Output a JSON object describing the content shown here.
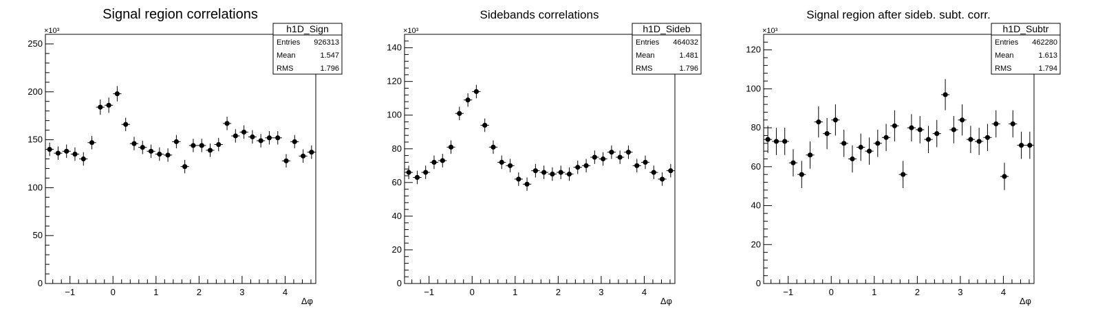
{
  "chart_data": [
    {
      "type": "scatter",
      "title": "Signal region correlations",
      "xlabel": "Δφ",
      "ylabel": "",
      "y_multiplier_label": "×10³",
      "xlim": [
        -1.5708,
        4.7124
      ],
      "ylim": [
        0,
        260
      ],
      "xticks": [
        -1,
        0,
        1,
        2,
        3,
        4
      ],
      "yticks": [
        0,
        50,
        100,
        150,
        200,
        250
      ],
      "grid": false,
      "legend": "stats box top-right",
      "stats": {
        "name": "h1D_Sign",
        "rows": [
          {
            "label": "Entries",
            "value": "926313"
          },
          {
            "label": "Mean",
            "value": "1.547"
          },
          {
            "label": "RMS",
            "value": "1.796"
          }
        ]
      },
      "x": [
        -1.473,
        -1.276,
        -1.08,
        -0.884,
        -0.687,
        -0.491,
        -0.295,
        -0.098,
        0.098,
        0.295,
        0.491,
        0.687,
        0.884,
        1.08,
        1.276,
        1.473,
        1.669,
        1.865,
        2.062,
        2.258,
        2.454,
        2.651,
        2.847,
        3.043,
        3.24,
        3.436,
        3.632,
        3.829,
        4.025,
        4.221,
        4.418,
        4.614
      ],
      "y": [
        140,
        136,
        138,
        135,
        130,
        147,
        184,
        186,
        198,
        166,
        146,
        142,
        138,
        135,
        134,
        148,
        122,
        144,
        144,
        139,
        145,
        167,
        154,
        158,
        153,
        149,
        152,
        152,
        128,
        148,
        133,
        137
      ],
      "yerr": [
        7,
        7,
        7,
        7,
        7,
        7,
        8,
        8,
        8,
        7,
        7,
        7,
        7,
        7,
        7,
        7,
        7,
        7,
        7,
        7,
        7,
        7,
        7,
        7,
        7,
        7,
        7,
        7,
        7,
        7,
        7,
        7
      ]
    },
    {
      "type": "scatter",
      "title": "Sidebands correlations",
      "xlabel": "Δφ",
      "ylabel": "",
      "y_multiplier_label": "×10³",
      "xlim": [
        -1.5708,
        4.7124
      ],
      "ylim": [
        0,
        148
      ],
      "xticks": [
        -1,
        0,
        1,
        2,
        3,
        4
      ],
      "yticks": [
        0,
        20,
        40,
        60,
        80,
        100,
        120,
        140
      ],
      "grid": false,
      "legend": "stats box top-right",
      "stats": {
        "name": "h1D_Sideb",
        "rows": [
          {
            "label": "Entries",
            "value": "464032"
          },
          {
            "label": "Mean",
            "value": "1.481"
          },
          {
            "label": "RMS",
            "value": "1.796"
          }
        ]
      },
      "x": [
        -1.473,
        -1.276,
        -1.08,
        -0.884,
        -0.687,
        -0.491,
        -0.295,
        -0.098,
        0.098,
        0.295,
        0.491,
        0.687,
        0.884,
        1.08,
        1.276,
        1.473,
        1.669,
        1.865,
        2.062,
        2.258,
        2.454,
        2.651,
        2.847,
        3.043,
        3.24,
        3.436,
        3.632,
        3.829,
        4.025,
        4.221,
        4.418,
        4.614
      ],
      "y": [
        66,
        63,
        66,
        72,
        73,
        81,
        101,
        109,
        114,
        94,
        81,
        72,
        70,
        62,
        59,
        67,
        66,
        65,
        66,
        65,
        69,
        70,
        75,
        74,
        78,
        75,
        78,
        70,
        72,
        66,
        62,
        67
      ],
      "yerr": [
        4,
        4,
        4,
        4,
        4,
        4,
        4,
        4,
        4,
        4,
        4,
        4,
        4,
        4,
        4,
        4,
        4,
        4,
        4,
        4,
        4,
        4,
        4,
        4,
        4,
        4,
        4,
        4,
        4,
        4,
        4,
        4
      ]
    },
    {
      "type": "scatter",
      "title": "Signal region after sideb. subt. corr.",
      "xlabel": "Δφ",
      "ylabel": "",
      "y_multiplier_label": "×10³",
      "xlim": [
        -1.5708,
        4.7124
      ],
      "ylim": [
        0,
        128
      ],
      "xticks": [
        -1,
        0,
        1,
        2,
        3,
        4
      ],
      "yticks": [
        0,
        20,
        40,
        60,
        80,
        100,
        120
      ],
      "grid": false,
      "legend": "stats box top-right",
      "stats": {
        "name": "h1D_Subtr",
        "rows": [
          {
            "label": "Entries",
            "value": "462280"
          },
          {
            "label": "Mean",
            "value": "1.613"
          },
          {
            "label": "RMS",
            "value": "1.794"
          }
        ]
      },
      "x": [
        -1.473,
        -1.276,
        -1.08,
        -0.884,
        -0.687,
        -0.491,
        -0.295,
        -0.098,
        0.098,
        0.295,
        0.491,
        0.687,
        0.884,
        1.08,
        1.276,
        1.473,
        1.669,
        1.865,
        2.062,
        2.258,
        2.454,
        2.651,
        2.847,
        3.043,
        3.24,
        3.436,
        3.632,
        3.829,
        4.025,
        4.221,
        4.418,
        4.614
      ],
      "y": [
        74,
        73,
        73,
        62,
        56,
        66,
        83,
        77,
        84,
        72,
        64,
        70,
        68,
        72,
        75,
        81,
        56,
        80,
        79,
        74,
        77,
        97,
        79,
        84,
        74,
        73,
        75,
        82,
        55,
        82,
        71,
        71
      ],
      "yerr": [
        7,
        7,
        7,
        7,
        7,
        7,
        8,
        8,
        8,
        7,
        7,
        7,
        7,
        7,
        7,
        8,
        7,
        7,
        7,
        7,
        7,
        8,
        7,
        8,
        7,
        7,
        7,
        7,
        7,
        7,
        7,
        7
      ]
    }
  ]
}
